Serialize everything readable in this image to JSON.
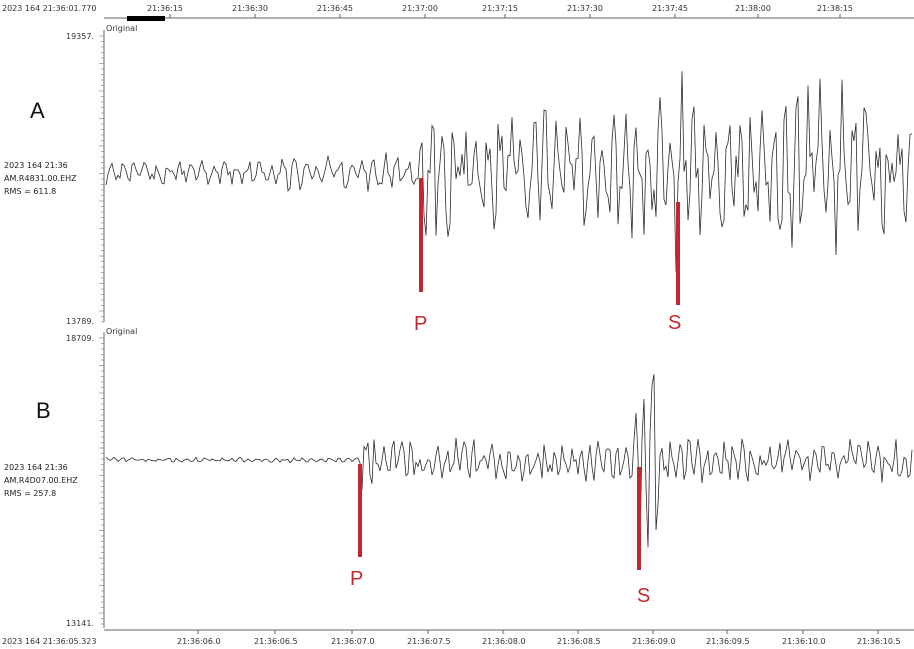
{
  "colors": {
    "trace": "#2b2b2b",
    "pick": "#c0282d",
    "axis": "#666666",
    "scroll": "#000000"
  },
  "top_axis": {
    "start_label": "2023 164 21:36:01.770",
    "ticks": [
      "21:36:15",
      "21:36:30",
      "21:36:45",
      "21:37:00",
      "21:37:15",
      "21:37:30",
      "21:37:45",
      "21:38:00",
      "21:38:15"
    ]
  },
  "bottom_axis": {
    "start_label": "2023 164 21:36:05.323",
    "ticks": [
      "21:36:06.0",
      "21:36:06.5",
      "21:36:07.0",
      "21:36:07.5",
      "21:36:08.0",
      "21:36:08.5",
      "21:36:09.0",
      "21:36:09.5",
      "21:36:10.0",
      "21:36:10.5"
    ]
  },
  "panels": [
    {
      "letter": "A",
      "tag": "Original",
      "ymax": "19357.",
      "ymin": "13789.",
      "date": "2023 164 21:36",
      "station": "AM.R4831.00.EHZ",
      "rms": "RMS = 611.8",
      "picks": [
        {
          "label": "P"
        },
        {
          "label": "S"
        }
      ]
    },
    {
      "letter": "B",
      "tag": "Original",
      "ymax": "18709.",
      "ymin": "13141.",
      "date": "2023 164 21:36",
      "station": "AM.R4D07.00.EHZ",
      "rms": "RMS = 257.8",
      "picks": [
        {
          "label": "P"
        },
        {
          "label": "S"
        }
      ]
    }
  ],
  "chart_data": [
    {
      "type": "line",
      "title": "",
      "station": "AM.R4831.00.EHZ",
      "ylim": [
        13789,
        19357
      ],
      "x_start": "2023 164 21:36:01.770",
      "x_ticks": [
        "21:36:15",
        "21:36:30",
        "21:36:45",
        "21:37:00",
        "21:37:15",
        "21:37:30",
        "21:37:45",
        "21:38:00",
        "21:38:15"
      ],
      "picks": [
        {
          "phase": "P",
          "time": "21:36:59.5"
        },
        {
          "phase": "S",
          "time": "21:37:44.0"
        }
      ]
    },
    {
      "type": "line",
      "title": "",
      "station": "AM.R4D07.00.EHZ",
      "ylim": [
        13141,
        18709
      ],
      "x_start": "2023 164 21:36:05.323",
      "x_ticks": [
        "21:36:06.0",
        "21:36:06.5",
        "21:36:07.0",
        "21:36:07.5",
        "21:36:08.0",
        "21:36:08.5",
        "21:36:09.0",
        "21:36:09.5",
        "21:36:10.0",
        "21:36:10.5"
      ],
      "picks": [
        {
          "phase": "P",
          "time": "21:36:07.0"
        },
        {
          "phase": "S",
          "time": "21:36:08.85"
        }
      ]
    }
  ]
}
